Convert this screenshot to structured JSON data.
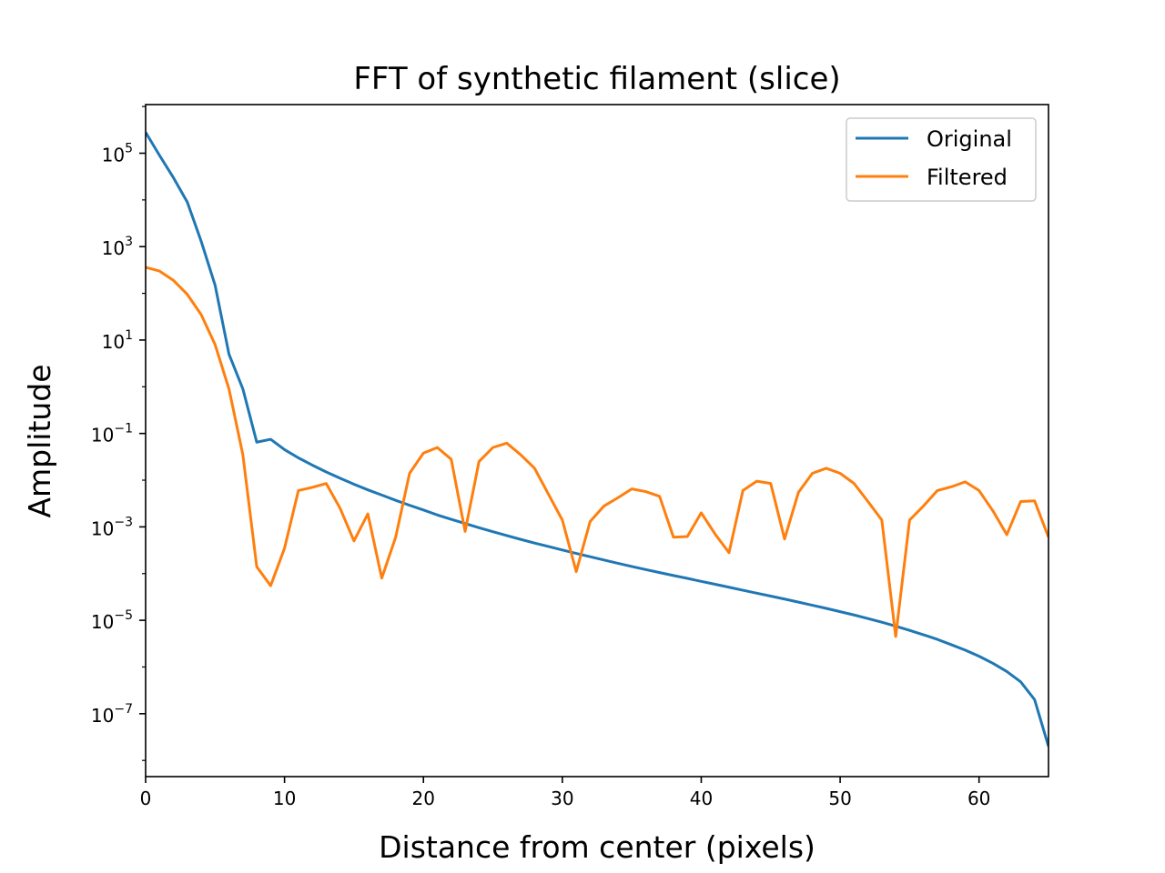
{
  "chart_data": {
    "type": "line",
    "title": "FFT of synthetic filament (slice)",
    "xlabel": "Distance from center (pixels)",
    "ylabel": "Amplitude",
    "xlim": [
      0,
      65
    ],
    "ylim": [
      4.5e-09,
      1100000.0
    ],
    "yscale": "log",
    "grid": false,
    "legend_position": "top-right",
    "x_ticks": [
      0,
      10,
      20,
      30,
      40,
      50,
      60
    ],
    "y_ticks": [
      {
        "base": "10",
        "exp": "5",
        "value": 100000.0
      },
      {
        "base": "10",
        "exp": "3",
        "value": 1000.0
      },
      {
        "base": "10",
        "exp": "1",
        "value": 10.0
      },
      {
        "base": "10",
        "exp": "−1",
        "value": 0.1
      },
      {
        "base": "10",
        "exp": "−3",
        "value": 0.001
      },
      {
        "base": "10",
        "exp": "−5",
        "value": 1e-05
      },
      {
        "base": "10",
        "exp": "−7",
        "value": 1e-07
      }
    ],
    "x": [
      0,
      1,
      2,
      3,
      4,
      5,
      6,
      7,
      8,
      9,
      10,
      11,
      12,
      13,
      14,
      15,
      16,
      17,
      18,
      19,
      20,
      21,
      22,
      23,
      24,
      25,
      26,
      27,
      28,
      29,
      30,
      31,
      32,
      33,
      34,
      35,
      36,
      37,
      38,
      39,
      40,
      41,
      42,
      43,
      44,
      45,
      46,
      47,
      48,
      49,
      50,
      51,
      52,
      53,
      54,
      55,
      56,
      57,
      58,
      59,
      60,
      61,
      62,
      63,
      64,
      65
    ],
    "series": [
      {
        "name": "Original",
        "color": "#1f77b4",
        "values": [
          280000,
          90000,
          30000,
          9000,
          1300,
          150,
          5,
          0.9,
          0.065,
          0.075,
          0.045,
          0.03,
          0.021,
          0.015,
          0.011,
          0.0082,
          0.0062,
          0.0048,
          0.0037,
          0.0029,
          0.0023,
          0.0018,
          0.00145,
          0.00118,
          0.00096,
          0.00079,
          0.00065,
          0.00054,
          0.00045,
          0.00038,
          0.00032,
          0.00027,
          0.00023,
          0.000195,
          0.000166,
          0.000142,
          0.000122,
          0.000105,
          9.1e-05,
          7.9e-05,
          6.8e-05,
          5.9e-05,
          5.1e-05,
          4.4e-05,
          3.8e-05,
          3.3e-05,
          2.85e-05,
          2.45e-05,
          2.1e-05,
          1.8e-05,
          1.53e-05,
          1.3e-05,
          1.09e-05,
          9.1e-06,
          7.5e-06,
          6.1e-06,
          4.9e-06,
          3.9e-06,
          3e-06,
          2.3e-06,
          1.7e-06,
          1.2e-06,
          8e-07,
          4.8e-07,
          2e-07,
          2e-08
        ]
      },
      {
        "name": "Filtered",
        "color": "#ff7f0e",
        "values": [
          360,
          300,
          190,
          95,
          35,
          8,
          0.9,
          0.035,
          0.00014,
          5.5e-05,
          0.00035,
          0.006,
          0.007,
          0.0085,
          0.0025,
          0.0005,
          0.0019,
          8e-05,
          0.0006,
          0.014,
          0.038,
          0.05,
          0.028,
          0.0008,
          0.025,
          0.05,
          0.062,
          0.035,
          0.018,
          0.005,
          0.0014,
          0.00011,
          0.0013,
          0.0028,
          0.0042,
          0.0065,
          0.0057,
          0.0045,
          0.0006,
          0.00062,
          0.002,
          0.0007,
          0.00028,
          0.006,
          0.0095,
          0.0085,
          0.00055,
          0.0055,
          0.014,
          0.018,
          0.014,
          0.0085,
          0.0035,
          0.0014,
          4.5e-06,
          0.0014,
          0.0028,
          0.006,
          0.0072,
          0.0092,
          0.006,
          0.0022,
          0.00068,
          0.0035,
          0.0036,
          0.0006
        ]
      }
    ]
  }
}
